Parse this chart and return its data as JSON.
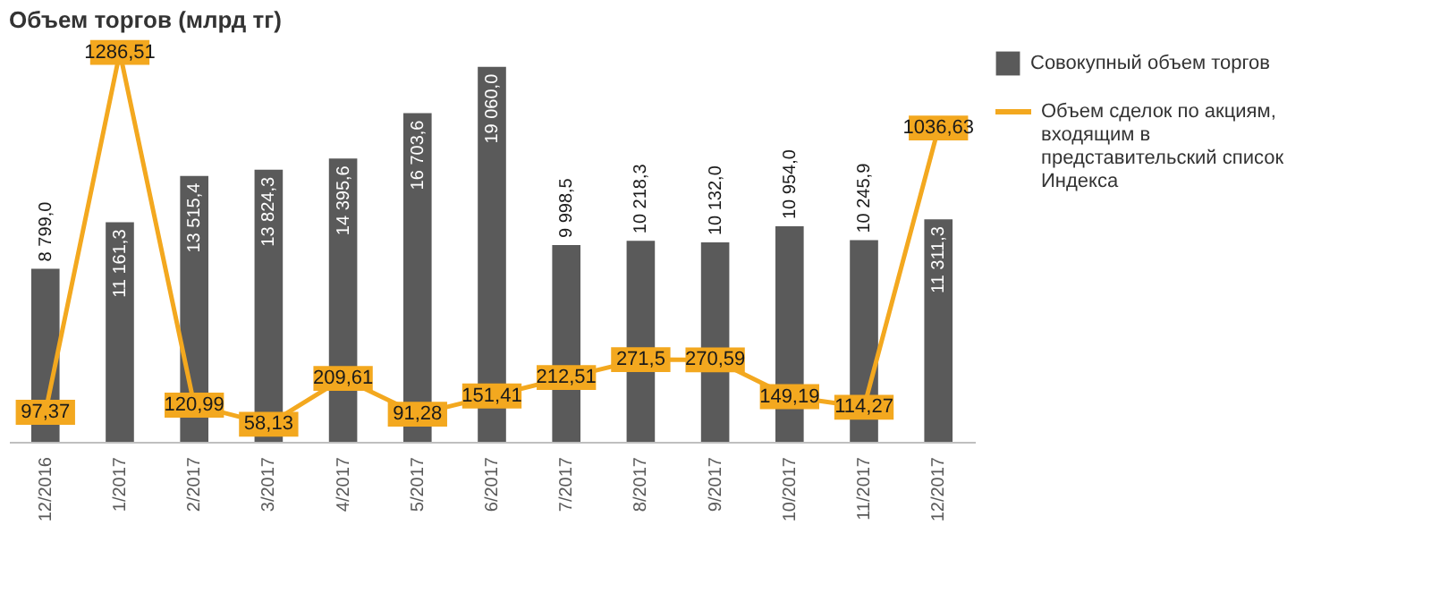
{
  "chart_data": {
    "type": "bar",
    "title": "Объем торгов (млрд тг)",
    "categories": [
      "12/2016",
      "1/2017",
      "2/2017",
      "3/2017",
      "4/2017",
      "5/2017",
      "6/2017",
      "7/2017",
      "8/2017",
      "9/2017",
      "10/2017",
      "11/2017",
      "12/2017"
    ],
    "series": [
      {
        "name": "Совокупный объем торгов",
        "color": "#5a5a5a",
        "values": [
          8799.0,
          11161.3,
          13515.4,
          13824.3,
          14395.6,
          16703.6,
          19060.0,
          9998.5,
          10218.3,
          10132.0,
          10954.0,
          10245.9,
          11311.3
        ],
        "value_labels": [
          "8 799,0",
          "11 161,3",
          "13 515,4",
          "13 824,3",
          "14 395,6",
          "16 703,6",
          "19 060,0",
          "9 998,5",
          "10 218,3",
          "10 132,0",
          "10 954,0",
          "10 245,9",
          "11 311,3"
        ]
      },
      {
        "name": "Объем сделок по акциям, входящим в представительский список Индекса",
        "type": "line",
        "axis": "y2",
        "color": "#f3a81f",
        "values": [
          97.37,
          1286.51,
          120.99,
          58.13,
          209.61,
          91.28,
          151.41,
          212.51,
          271.5,
          270.59,
          149.19,
          114.27,
          1036.63
        ],
        "value_labels": [
          "97,37",
          "1286,51",
          "120,99",
          "58,13",
          "209,61",
          "91,28",
          "151,41",
          "212,51",
          "271,5",
          "270,59",
          "149,19",
          "114,27",
          "1036,63"
        ]
      }
    ],
    "tick_labels": "x",
    "legend": "right",
    "line_style": "solid",
    "marker": "square"
  }
}
